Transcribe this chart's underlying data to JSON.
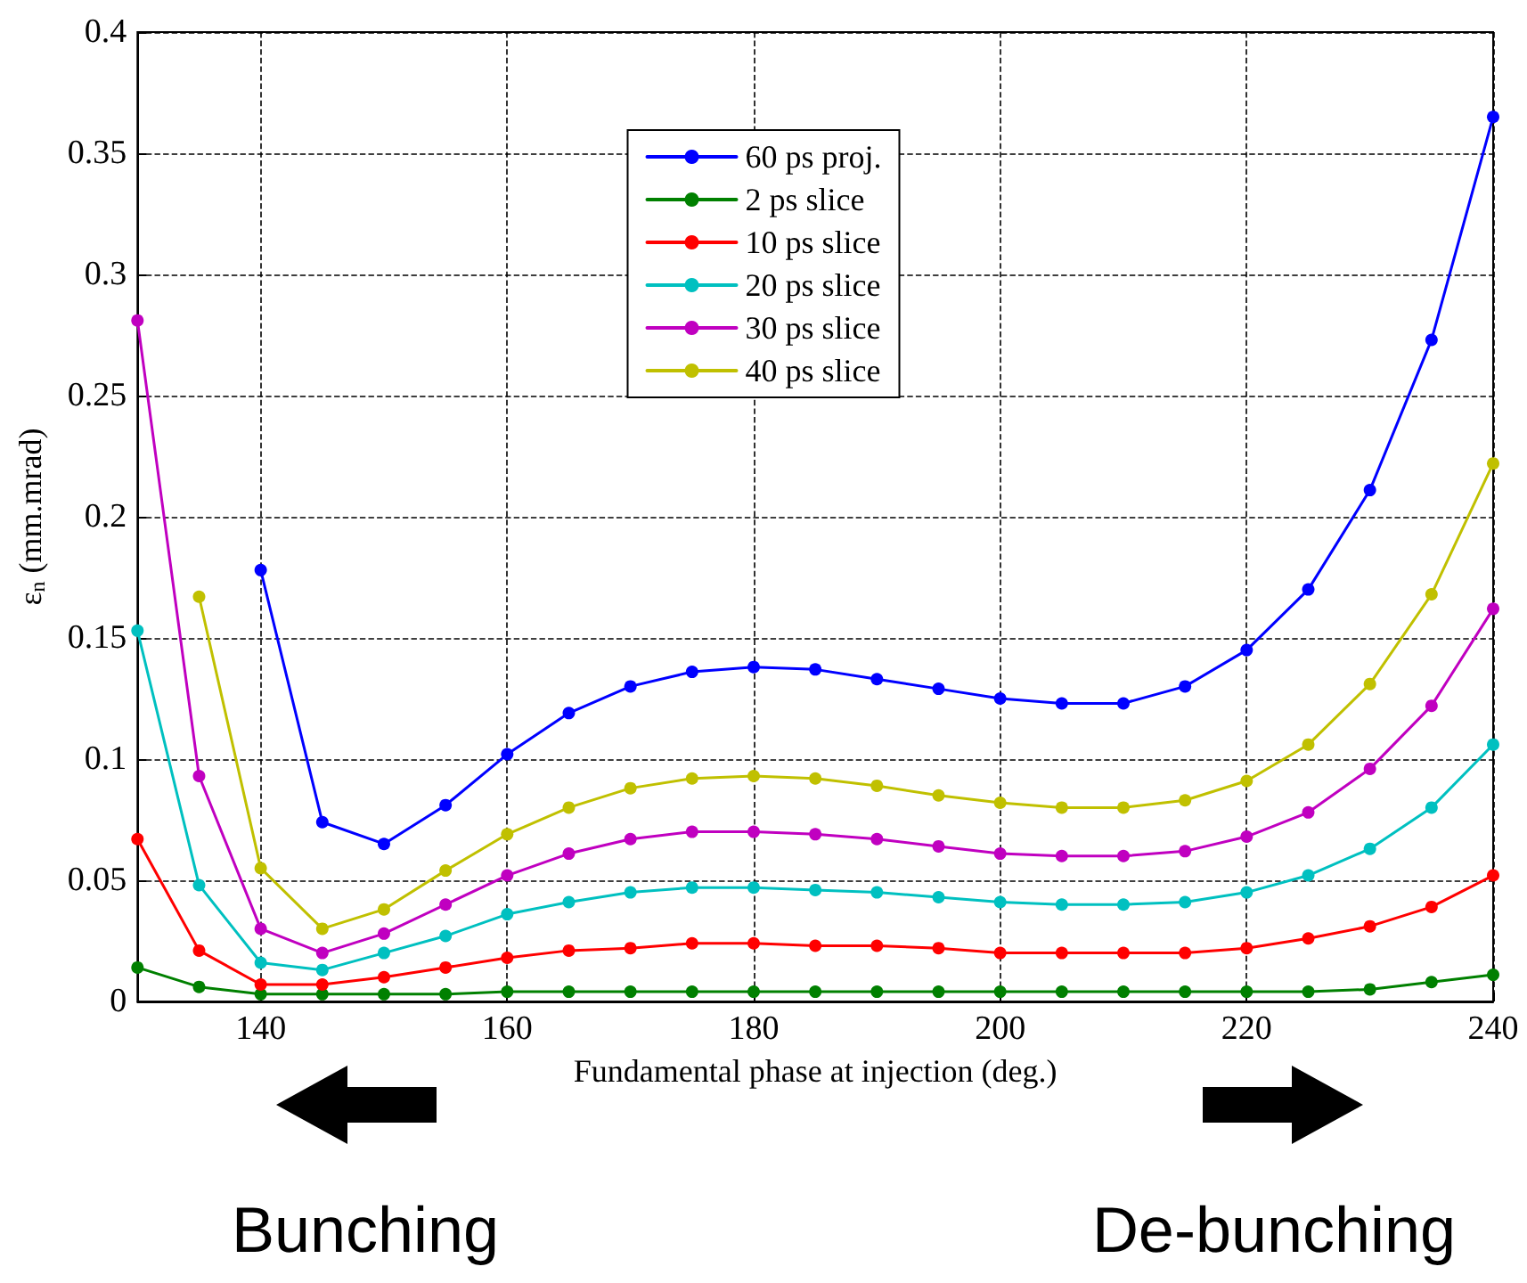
{
  "chart_data": {
    "type": "line",
    "xlabel": "Fundamental phase at injection (deg.)",
    "ylabel": "ε$_{n}$ (mm.mrad)",
    "x": [
      130,
      135,
      140,
      145,
      150,
      155,
      160,
      165,
      170,
      175,
      180,
      185,
      190,
      195,
      200,
      205,
      210,
      215,
      220,
      225,
      230,
      235,
      240
    ],
    "xlim": [
      130,
      240
    ],
    "xticks": [
      140,
      160,
      180,
      200,
      220,
      240
    ],
    "ylim": [
      0,
      0.4
    ],
    "yticks": [
      0,
      0.05,
      0.1,
      0.15,
      0.2,
      0.25,
      0.3,
      0.35,
      0.4
    ],
    "grid": true,
    "legend": "top",
    "marker": "circle",
    "line_style": "solid",
    "series": [
      {
        "name": "60 ps proj.",
        "color": "#0000ff",
        "values": [
          null,
          null,
          0.178,
          0.074,
          0.065,
          0.081,
          0.102,
          0.119,
          0.13,
          0.136,
          0.138,
          0.137,
          0.133,
          0.129,
          0.125,
          0.123,
          0.123,
          0.13,
          0.145,
          0.17,
          0.211,
          0.273,
          0.365
        ]
      },
      {
        "name": "2 ps slice",
        "color": "#008000",
        "values": [
          0.014,
          0.006,
          0.003,
          0.003,
          0.003,
          0.003,
          0.004,
          0.004,
          0.004,
          0.004,
          0.004,
          0.004,
          0.004,
          0.004,
          0.004,
          0.004,
          0.004,
          0.004,
          0.004,
          0.004,
          0.005,
          0.008,
          0.011
        ]
      },
      {
        "name": "10 ps slice",
        "color": "#ff0000",
        "values": [
          0.067,
          0.021,
          0.007,
          0.007,
          0.01,
          0.014,
          0.018,
          0.021,
          0.022,
          0.024,
          0.024,
          0.023,
          0.023,
          0.022,
          0.02,
          0.02,
          0.02,
          0.02,
          0.022,
          0.026,
          0.031,
          0.039,
          0.052
        ]
      },
      {
        "name": "20 ps slice",
        "color": "#00c0c0",
        "values": [
          0.153,
          0.048,
          0.016,
          0.013,
          0.02,
          0.027,
          0.036,
          0.041,
          0.045,
          0.047,
          0.047,
          0.046,
          0.045,
          0.043,
          0.041,
          0.04,
          0.04,
          0.041,
          0.045,
          0.052,
          0.063,
          0.08,
          0.106
        ]
      },
      {
        "name": "30 ps slice",
        "color": "#c000c0",
        "values": [
          0.281,
          0.093,
          0.03,
          0.02,
          0.028,
          0.04,
          0.052,
          0.061,
          0.067,
          0.07,
          0.07,
          0.069,
          0.067,
          0.064,
          0.061,
          0.06,
          0.06,
          0.062,
          0.068,
          0.078,
          0.096,
          0.122,
          0.162
        ]
      },
      {
        "name": "40 ps slice",
        "color": "#c0c000",
        "values": [
          null,
          0.167,
          0.055,
          0.03,
          0.038,
          0.054,
          0.069,
          0.08,
          0.088,
          0.092,
          0.093,
          0.092,
          0.089,
          0.085,
          0.082,
          0.08,
          0.08,
          0.083,
          0.091,
          0.106,
          0.131,
          0.168,
          0.222
        ]
      }
    ],
    "annotations": [
      "Bunching",
      "De-bunching"
    ]
  }
}
